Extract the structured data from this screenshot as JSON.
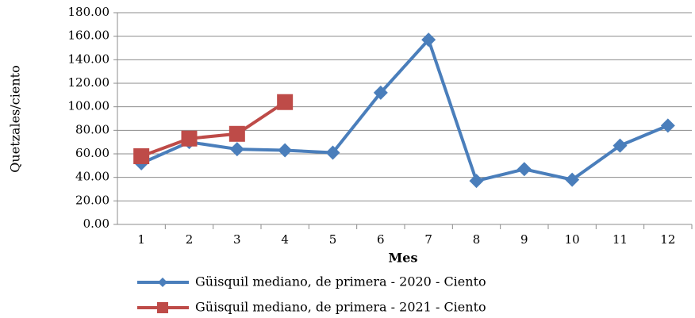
{
  "chart_data": {
    "type": "line",
    "x_label": "Mes",
    "y_label": "Quetzales/ciento",
    "categories": [
      "1",
      "2",
      "3",
      "4",
      "5",
      "6",
      "7",
      "8",
      "9",
      "10",
      "11",
      "12"
    ],
    "series": [
      {
        "name": "Güisquil mediano, de primera - 2020 - Ciento",
        "color": "#4a7ebb",
        "marker": "diamond",
        "values": [
          52,
          70,
          64,
          63,
          61,
          112,
          157,
          37,
          47,
          38,
          67,
          84
        ]
      },
      {
        "name": "Güisquil mediano, de primera - 2021 - Ciento",
        "color": "#be4b48",
        "marker": "square",
        "values": [
          58,
          73,
          77,
          104,
          null,
          null,
          null,
          null,
          null,
          null,
          null,
          null
        ]
      }
    ],
    "ylim": [
      0,
      180
    ],
    "yticks": [
      {
        "value": 0,
        "label": "0.00"
      },
      {
        "value": 20,
        "label": "20.00"
      },
      {
        "value": 40,
        "label": "40.00"
      },
      {
        "value": 60,
        "label": "60.00"
      },
      {
        "value": 80,
        "label": "80.00"
      },
      {
        "value": 100,
        "label": "100.00"
      },
      {
        "value": 120,
        "label": "120.00"
      },
      {
        "value": 140,
        "label": "140.00"
      },
      {
        "value": 160,
        "label": "160.00"
      },
      {
        "value": 180,
        "label": "180.00"
      }
    ],
    "grid": true,
    "legend": "bottom"
  }
}
